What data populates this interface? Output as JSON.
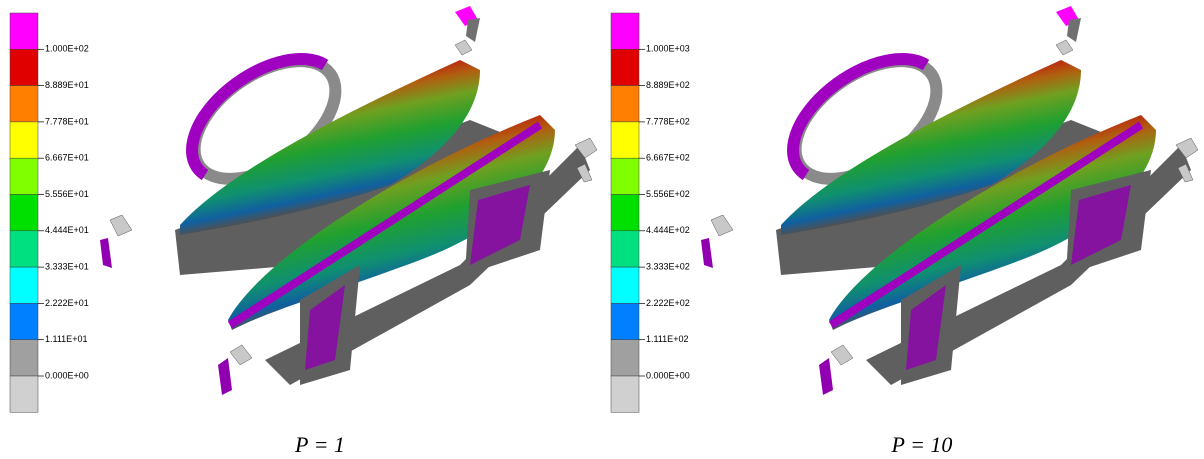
{
  "legend_colors": [
    "#ff00ff",
    "#e00000",
    "#ff7f00",
    "#ffff00",
    "#80ff00",
    "#00e000",
    "#00e080",
    "#00ffff",
    "#0080ff",
    "#a0a0a0",
    "#d0d0d0"
  ],
  "panels": [
    {
      "legend": {
        "labels": [
          "1.000E+02",
          "8.889E+01",
          "7.778E+01",
          "6.667E+01",
          "5.556E+01",
          "4.444E+01",
          "3.333E+01",
          "2.222E+01",
          "1.111E+01",
          "0.000E+00"
        ]
      },
      "caption": "P = 1"
    },
    {
      "legend": {
        "labels": [
          "1.000E+03",
          "8.889E+02",
          "7.778E+02",
          "6.667E+02",
          "5.556E+02",
          "4.444E+02",
          "3.333E+02",
          "2.222E+02",
          "1.111E+02",
          "0.000E+00"
        ]
      },
      "caption": "P = 10"
    }
  ]
}
